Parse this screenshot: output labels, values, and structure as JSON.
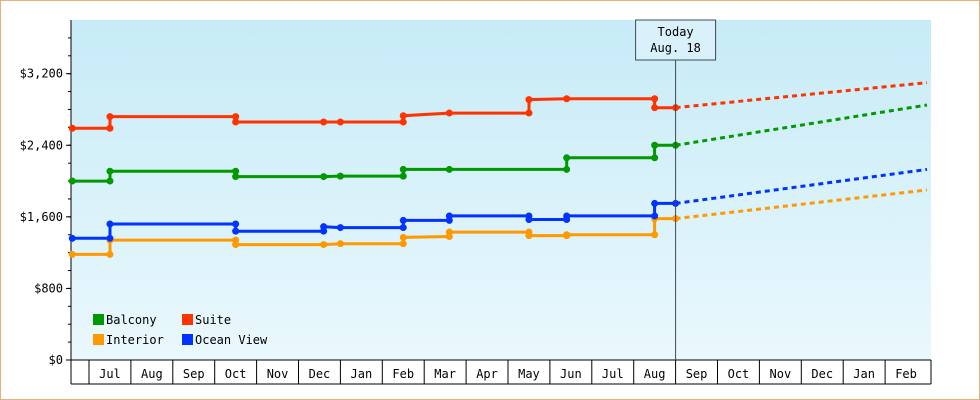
{
  "chart_data": {
    "type": "line",
    "title": "",
    "xlabel": "",
    "ylabel": "",
    "ylim": [
      0,
      3800
    ],
    "y_ticks": [
      {
        "value": 0,
        "label": "$0"
      },
      {
        "value": 800,
        "label": "$800"
      },
      {
        "value": 1600,
        "label": "$1,600"
      },
      {
        "value": 2400,
        "label": "$2,400"
      },
      {
        "value": 3200,
        "label": "$3,200"
      }
    ],
    "x_months": [
      "Jul",
      "Aug",
      "Sep",
      "Oct",
      "Nov",
      "Dec",
      "Jan",
      "Feb",
      "Mar",
      "Apr",
      "May",
      "Jun",
      "Jul",
      "Aug",
      "Sep",
      "Oct",
      "Nov",
      "Dec",
      "Jan",
      "Feb"
    ],
    "x_start_month_index": -0.4,
    "x_end_month_index": 20,
    "today": {
      "line1": "Today",
      "line2": "Aug. 18",
      "month_index": 14.0
    },
    "grid": false,
    "legend_position": "bottom-left",
    "series": [
      {
        "name": "Balcony",
        "color": "#009900",
        "steps": [
          [
            -0.4,
            2000
          ],
          [
            0.5,
            2000
          ],
          [
            0.5,
            2110
          ],
          [
            3.5,
            2110
          ],
          [
            3.5,
            2050
          ],
          [
            5.6,
            2050
          ],
          [
            6.0,
            2055
          ],
          [
            7.5,
            2055
          ],
          [
            7.5,
            2130
          ],
          [
            8.6,
            2130
          ],
          [
            11.4,
            2130
          ],
          [
            11.4,
            2260
          ],
          [
            13.5,
            2260
          ],
          [
            13.5,
            2400
          ],
          [
            14.0,
            2400
          ]
        ],
        "markers": [
          [
            -0.4,
            2000
          ],
          [
            0.5,
            2000
          ],
          [
            0.5,
            2110
          ],
          [
            3.5,
            2110
          ],
          [
            3.5,
            2050
          ],
          [
            5.6,
            2050
          ],
          [
            6.0,
            2055
          ],
          [
            7.5,
            2055
          ],
          [
            7.5,
            2130
          ],
          [
            8.6,
            2130
          ],
          [
            11.4,
            2130
          ],
          [
            11.4,
            2260
          ],
          [
            13.5,
            2260
          ],
          [
            13.5,
            2400
          ],
          [
            14.0,
            2400
          ]
        ],
        "forecast": [
          [
            14.0,
            2400
          ],
          [
            20.0,
            2850
          ]
        ]
      },
      {
        "name": "Suite",
        "color": "#ff3300",
        "steps": [
          [
            -0.4,
            2590
          ],
          [
            0.5,
            2590
          ],
          [
            0.5,
            2720
          ],
          [
            3.5,
            2720
          ],
          [
            3.5,
            2660
          ],
          [
            5.6,
            2660
          ],
          [
            6.0,
            2660
          ],
          [
            7.5,
            2660
          ],
          [
            7.5,
            2730
          ],
          [
            8.6,
            2760
          ],
          [
            10.5,
            2760
          ],
          [
            10.5,
            2910
          ],
          [
            11.4,
            2920
          ],
          [
            13.5,
            2920
          ],
          [
            13.5,
            2820
          ],
          [
            14.0,
            2820
          ]
        ],
        "markers": [
          [
            -0.4,
            2590
          ],
          [
            0.5,
            2590
          ],
          [
            0.5,
            2720
          ],
          [
            3.5,
            2720
          ],
          [
            3.5,
            2660
          ],
          [
            5.6,
            2660
          ],
          [
            6.0,
            2660
          ],
          [
            7.5,
            2660
          ],
          [
            7.5,
            2730
          ],
          [
            8.6,
            2760
          ],
          [
            10.5,
            2760
          ],
          [
            10.5,
            2910
          ],
          [
            11.4,
            2920
          ],
          [
            13.5,
            2920
          ],
          [
            13.5,
            2820
          ],
          [
            14.0,
            2820
          ]
        ],
        "forecast": [
          [
            14.0,
            2820
          ],
          [
            20.0,
            3100
          ]
        ]
      },
      {
        "name": "Interior",
        "color": "#ff9900",
        "steps": [
          [
            -0.4,
            1180
          ],
          [
            0.5,
            1180
          ],
          [
            0.5,
            1340
          ],
          [
            3.5,
            1340
          ],
          [
            3.5,
            1290
          ],
          [
            5.6,
            1290
          ],
          [
            6.0,
            1300
          ],
          [
            7.5,
            1300
          ],
          [
            7.5,
            1370
          ],
          [
            8.6,
            1380
          ],
          [
            8.6,
            1430
          ],
          [
            10.5,
            1430
          ],
          [
            10.5,
            1390
          ],
          [
            11.4,
            1390
          ],
          [
            11.4,
            1400
          ],
          [
            13.5,
            1400
          ],
          [
            13.5,
            1580
          ],
          [
            14.0,
            1580
          ]
        ],
        "markers": [
          [
            -0.4,
            1180
          ],
          [
            0.5,
            1180
          ],
          [
            0.5,
            1340
          ],
          [
            3.5,
            1340
          ],
          [
            3.5,
            1290
          ],
          [
            5.6,
            1290
          ],
          [
            6.0,
            1300
          ],
          [
            7.5,
            1300
          ],
          [
            7.5,
            1370
          ],
          [
            8.6,
            1380
          ],
          [
            8.6,
            1430
          ],
          [
            10.5,
            1430
          ],
          [
            10.5,
            1390
          ],
          [
            11.4,
            1390
          ],
          [
            11.4,
            1400
          ],
          [
            13.5,
            1400
          ],
          [
            13.5,
            1580
          ],
          [
            14.0,
            1580
          ]
        ],
        "forecast": [
          [
            14.0,
            1580
          ],
          [
            20.0,
            1900
          ]
        ]
      },
      {
        "name": "Ocean View",
        "color": "#0033ff",
        "steps": [
          [
            -0.4,
            1360
          ],
          [
            0.5,
            1360
          ],
          [
            0.5,
            1520
          ],
          [
            3.5,
            1520
          ],
          [
            3.5,
            1440
          ],
          [
            5.6,
            1440
          ],
          [
            5.6,
            1490
          ],
          [
            6.0,
            1480
          ],
          [
            7.5,
            1480
          ],
          [
            7.5,
            1560
          ],
          [
            8.6,
            1560
          ],
          [
            8.6,
            1610
          ],
          [
            10.5,
            1610
          ],
          [
            10.5,
            1570
          ],
          [
            11.4,
            1570
          ],
          [
            11.4,
            1610
          ],
          [
            13.5,
            1610
          ],
          [
            13.5,
            1750
          ],
          [
            14.0,
            1750
          ]
        ],
        "markers": [
          [
            -0.4,
            1360
          ],
          [
            0.5,
            1360
          ],
          [
            0.5,
            1520
          ],
          [
            3.5,
            1520
          ],
          [
            3.5,
            1440
          ],
          [
            5.6,
            1440
          ],
          [
            5.6,
            1490
          ],
          [
            6.0,
            1480
          ],
          [
            7.5,
            1480
          ],
          [
            7.5,
            1560
          ],
          [
            8.6,
            1560
          ],
          [
            8.6,
            1610
          ],
          [
            10.5,
            1610
          ],
          [
            10.5,
            1570
          ],
          [
            11.4,
            1570
          ],
          [
            11.4,
            1610
          ],
          [
            13.5,
            1610
          ],
          [
            13.5,
            1750
          ],
          [
            14.0,
            1750
          ]
        ],
        "forecast": [
          [
            14.0,
            1750
          ],
          [
            20.0,
            2130
          ]
        ]
      }
    ],
    "legend": [
      {
        "name": "Balcony",
        "color": "#009900"
      },
      {
        "name": "Suite",
        "color": "#ff3300"
      },
      {
        "name": "Interior",
        "color": "#ff9900"
      },
      {
        "name": "Ocean View",
        "color": "#0033ff"
      }
    ]
  }
}
